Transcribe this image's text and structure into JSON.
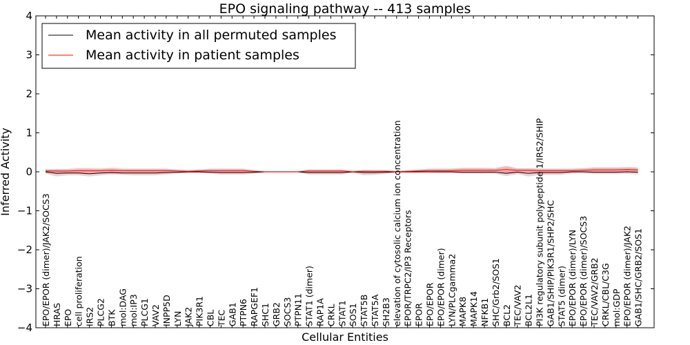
{
  "chart_data": {
    "type": "line",
    "title": "EPO signaling pathway -- 413 samples",
    "xlabel": "Cellular Entities",
    "ylabel": "Inferred Activity",
    "ylim": [
      -4,
      4
    ],
    "yticks": [
      -4,
      -3,
      -2,
      -1,
      0,
      1,
      2,
      3,
      4
    ],
    "ytick_labels": [
      "−4",
      "−3",
      "−2",
      "−1",
      "0",
      "1",
      "2",
      "3",
      "4"
    ],
    "legend_position": "top-left",
    "colors": {
      "permuted": "#000000",
      "patient": "#ff0000",
      "permuted_band": "#b0b0b0",
      "patient_band": "#ff6060"
    },
    "categories": [
      "EPO/EPOR (dimer)/JAK2/SOCS3",
      "HRAS",
      "EPO",
      "cell proliferation",
      "IRS2",
      "PLCG2",
      "BTK",
      "mol:DAG",
      "mol:IP3",
      "PLCG1",
      "VAV2",
      "INPP5D",
      "LYN",
      "JAK2",
      "PIK3R1",
      "CBL",
      "TEC",
      "GAB1",
      "PTPN6",
      "RAPGEF1",
      "SHC1",
      "GRB2",
      "SOCS3",
      "PTPN11",
      "STAT1 (dimer)",
      "RAP1A",
      "CRKL",
      "STAT1",
      "SOS1",
      "STAT5B",
      "STAT5A",
      "SH2B3",
      "elevation of cytosolic calcium ion concentration",
      "EPOR/TRPC2/IP3 Receptors",
      "EPOR",
      "EPO/EPOR",
      "EPO/EPOR (dimer)",
      "LYN/PLCgamma2",
      "MAPK8",
      "MAPK14",
      "NFKB1",
      "SHC/Grb2/SOS1",
      "BCL2",
      "TEC/VAV2",
      "BCL2L1",
      "PI3K regulatory subunit polypeptide 1/IRS2/SHIP",
      "GAB1/SHIP/PIK3R1/SHP2/SHC",
      "STAT5 (dimer)",
      "EPO/EPOR (dimer)/LYN",
      "EPO/EPOR (dimer)/SOCS3",
      "TEC/VAV2/GRB2",
      "CRKL/CBL/C3G",
      "mol:GDP",
      "EPO/EPOR (dimer)/JAK2",
      "GAB1/SHC/GRB2/SOS1"
    ],
    "series": [
      {
        "name": "Mean activity in all permuted samples",
        "values": [
          0.0,
          -0.04,
          -0.03,
          -0.03,
          -0.05,
          -0.03,
          -0.02,
          -0.03,
          -0.03,
          -0.03,
          -0.03,
          -0.02,
          -0.01,
          0.0,
          0.0,
          -0.01,
          -0.02,
          -0.02,
          -0.02,
          -0.01,
          0.0,
          0.0,
          0.0,
          0.0,
          -0.02,
          -0.02,
          -0.02,
          -0.02,
          0.0,
          -0.02,
          -0.02,
          -0.01,
          0.0,
          0.0,
          0.0,
          0.0,
          0.0,
          0.0,
          -0.01,
          -0.01,
          -0.01,
          -0.01,
          -0.04,
          -0.01,
          -0.04,
          -0.02,
          -0.02,
          -0.02,
          0.0,
          0.0,
          -0.01,
          -0.01,
          -0.01,
          0.0,
          -0.01
        ],
        "band": [
          0.05,
          0.08,
          0.06,
          0.06,
          0.07,
          0.06,
          0.05,
          0.05,
          0.06,
          0.06,
          0.06,
          0.05,
          0.04,
          0.03,
          0.03,
          0.04,
          0.05,
          0.05,
          0.05,
          0.04,
          0.02,
          0.02,
          0.02,
          0.02,
          0.05,
          0.05,
          0.05,
          0.05,
          0.03,
          0.07,
          0.06,
          0.05,
          0.02,
          0.02,
          0.02,
          0.02,
          0.03,
          0.03,
          0.04,
          0.04,
          0.04,
          0.04,
          0.07,
          0.05,
          0.08,
          0.06,
          0.06,
          0.06,
          0.04,
          0.04,
          0.05,
          0.05,
          0.05,
          0.05,
          0.06
        ]
      },
      {
        "name": "Mean activity in patient samples",
        "values": [
          0.02,
          0.02,
          0.02,
          0.03,
          0.03,
          0.03,
          0.04,
          0.03,
          0.03,
          0.03,
          0.03,
          0.03,
          0.02,
          0.01,
          0.02,
          0.03,
          0.03,
          0.03,
          0.03,
          0.01,
          0.0,
          0.0,
          0.0,
          0.0,
          0.02,
          0.02,
          0.02,
          0.02,
          0.0,
          0.01,
          0.01,
          0.01,
          0.0,
          0.01,
          0.02,
          0.03,
          0.03,
          0.03,
          0.04,
          0.04,
          0.04,
          0.04,
          0.06,
          0.04,
          0.04,
          0.03,
          0.03,
          0.03,
          0.03,
          0.04,
          0.05,
          0.05,
          0.05,
          0.06,
          0.05
        ],
        "band": [
          0.04,
          0.05,
          0.05,
          0.06,
          0.06,
          0.05,
          0.06,
          0.05,
          0.05,
          0.05,
          0.05,
          0.05,
          0.04,
          0.03,
          0.04,
          0.05,
          0.05,
          0.05,
          0.05,
          0.03,
          0.01,
          0.01,
          0.01,
          0.01,
          0.04,
          0.04,
          0.04,
          0.04,
          0.02,
          0.03,
          0.03,
          0.03,
          0.02,
          0.03,
          0.04,
          0.05,
          0.05,
          0.05,
          0.06,
          0.06,
          0.06,
          0.05,
          0.09,
          0.05,
          0.05,
          0.05,
          0.05,
          0.05,
          0.05,
          0.05,
          0.06,
          0.06,
          0.06,
          0.06,
          0.06
        ]
      }
    ]
  }
}
